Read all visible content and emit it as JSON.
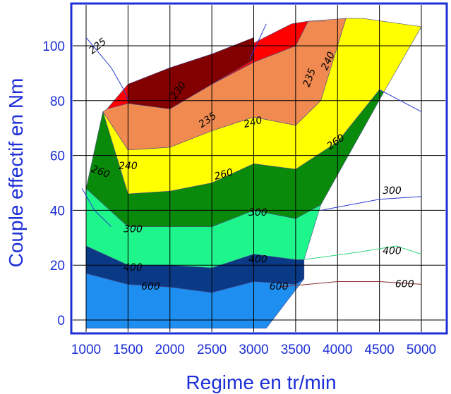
{
  "chart_data": {
    "type": "area",
    "title": "",
    "xlabel": "Regime en tr/min",
    "ylabel": "Couple effectif en Nm",
    "xlim": [
      900,
      5150
    ],
    "ylim": [
      -4,
      112
    ],
    "x_ticks": [
      1000,
      1500,
      2000,
      2500,
      3000,
      3500,
      4000,
      4500,
      5000
    ],
    "y_ticks": [
      0,
      20,
      40,
      60,
      80,
      100
    ],
    "grid": true,
    "colors": {
      "axis": "#1c2fd6",
      "grid": "#000000",
      "frame": "#1c2fd6"
    },
    "envelope": [
      [
        1000,
        -3
      ],
      [
        1030,
        60
      ],
      [
        1200,
        76
      ],
      [
        1500,
        86
      ],
      [
        3500,
        109
      ],
      [
        4300,
        110
      ],
      [
        5000,
        107
      ],
      [
        3500,
        20
      ],
      [
        3150,
        -3
      ]
    ],
    "bands": [
      {
        "name": "600",
        "color": "#1e8ef0",
        "upper": [
          [
            1000,
            17
          ],
          [
            1500,
            13
          ],
          [
            2000,
            12
          ],
          [
            2500,
            10
          ],
          [
            3000,
            14
          ],
          [
            3500,
            13
          ],
          [
            3600,
            15
          ]
        ],
        "lower": [
          [
            1000,
            -3
          ],
          [
            3150,
            -3
          ]
        ]
      },
      {
        "name": "400",
        "color": "#0a3a86",
        "upper": [
          [
            1000,
            27
          ],
          [
            1500,
            20
          ],
          [
            2000,
            20
          ],
          [
            2500,
            19
          ],
          [
            3000,
            24
          ],
          [
            3500,
            22
          ],
          [
            3600,
            22
          ]
        ],
        "lower": [
          [
            1000,
            17
          ],
          [
            1500,
            13
          ],
          [
            2000,
            12
          ],
          [
            2500,
            10
          ],
          [
            3000,
            14
          ],
          [
            3500,
            13
          ],
          [
            3600,
            15
          ]
        ]
      },
      {
        "name": "300",
        "color": "#1ef58a",
        "upper": [
          [
            1000,
            48
          ],
          [
            1500,
            34
          ],
          [
            2000,
            34
          ],
          [
            2500,
            34
          ],
          [
            3000,
            40
          ],
          [
            3500,
            37
          ],
          [
            3800,
            42
          ]
        ],
        "lower": [
          [
            1000,
            27
          ],
          [
            1500,
            20
          ],
          [
            2000,
            20
          ],
          [
            2500,
            19
          ],
          [
            3000,
            24
          ],
          [
            3500,
            22
          ],
          [
            3600,
            22
          ]
        ]
      },
      {
        "name": "260",
        "color": "#0a8a0a",
        "upper": [
          [
            1200,
            76
          ],
          [
            1500,
            46
          ],
          [
            2000,
            47
          ],
          [
            2500,
            50
          ],
          [
            3000,
            57
          ],
          [
            3500,
            55
          ],
          [
            4000,
            65
          ],
          [
            4500,
            84
          ],
          [
            4550,
            83
          ]
        ],
        "lower": [
          [
            1000,
            48
          ],
          [
            1500,
            34
          ],
          [
            2000,
            34
          ],
          [
            2500,
            34
          ],
          [
            3000,
            40
          ],
          [
            3500,
            37
          ],
          [
            3800,
            42
          ]
        ]
      },
      {
        "name": "240",
        "color": "#ffff00",
        "upper": [
          [
            1200,
            76
          ],
          [
            1500,
            62
          ],
          [
            2000,
            63
          ],
          [
            2500,
            69
          ],
          [
            3000,
            74
          ],
          [
            3500,
            71
          ],
          [
            3800,
            80
          ],
          [
            4100,
            110
          ],
          [
            4300,
            110
          ],
          [
            5000,
            107
          ]
        ],
        "lower": [
          [
            1200,
            76
          ],
          [
            1500,
            46
          ],
          [
            2000,
            47
          ],
          [
            2500,
            50
          ],
          [
            3000,
            57
          ],
          [
            3500,
            55
          ],
          [
            4000,
            65
          ],
          [
            4500,
            84
          ],
          [
            4550,
            83
          ]
        ]
      },
      {
        "name": "235",
        "color": "#f08a50",
        "upper": [
          [
            1250,
            77
          ],
          [
            1500,
            79
          ],
          [
            2000,
            77
          ],
          [
            2500,
            86
          ],
          [
            3000,
            94
          ],
          [
            3500,
            100
          ],
          [
            3650,
            109
          ],
          [
            4100,
            110
          ]
        ],
        "lower": [
          [
            1200,
            76
          ],
          [
            1500,
            62
          ],
          [
            2000,
            63
          ],
          [
            2500,
            69
          ],
          [
            3000,
            74
          ],
          [
            3500,
            71
          ],
          [
            3800,
            80
          ],
          [
            4100,
            110
          ]
        ]
      },
      {
        "name": "230",
        "color": "#ff0000",
        "upper": [
          [
            1500,
            86
          ],
          [
            2000,
            92
          ],
          [
            2500,
            97
          ],
          [
            3000,
            101
          ],
          [
            3450,
            108
          ],
          [
            3650,
            109
          ],
          [
            3850,
            109
          ]
        ],
        "lower": [
          [
            1250,
            77
          ],
          [
            1500,
            79
          ],
          [
            2000,
            77
          ],
          [
            2500,
            86
          ],
          [
            3000,
            94
          ],
          [
            3500,
            100
          ],
          [
            3650,
            109
          ],
          [
            3850,
            109
          ]
        ]
      },
      {
        "name": "225",
        "color": "#820000",
        "upper": [
          [
            1500,
            86
          ],
          [
            2000,
            92
          ],
          [
            2500,
            97
          ],
          [
            3000,
            103
          ]
        ],
        "lower": [
          [
            1500,
            79
          ],
          [
            2000,
            77
          ],
          [
            2500,
            86
          ],
          [
            3000,
            95
          ]
        ]
      }
    ],
    "extension_lines": [
      {
        "color": "#2a3acf",
        "points": [
          [
            1000,
            103
          ],
          [
            1300,
            92
          ],
          [
            1450,
            84
          ],
          [
            1500,
            80
          ]
        ]
      },
      {
        "color": "#2a3acf",
        "points": [
          [
            4500,
            84
          ],
          [
            5000,
            76
          ]
        ]
      },
      {
        "color": "#2a3acf",
        "points": [
          [
            950,
            48
          ],
          [
            1100,
            40
          ],
          [
            1300,
            34
          ]
        ]
      },
      {
        "color": "#2a3acf",
        "points": [
          [
            3800,
            40
          ],
          [
            4500,
            44
          ],
          [
            5000,
            45
          ]
        ]
      },
      {
        "color": "#2fd87a",
        "points": [
          [
            3600,
            22
          ],
          [
            4300,
            25
          ],
          [
            4700,
            27
          ],
          [
            5000,
            24
          ]
        ]
      },
      {
        "color": "#8a2a2a",
        "points": [
          [
            3300,
            12
          ],
          [
            4000,
            14
          ],
          [
            4500,
            14
          ],
          [
            5000,
            13
          ]
        ]
      },
      {
        "color": "#2a3acf",
        "points": [
          [
            2950,
            95
          ],
          [
            3150,
            108
          ]
        ]
      }
    ],
    "contour_labels": [
      {
        "text": "225",
        "x": 1160,
        "y": 99,
        "angle": -38
      },
      {
        "text": "230",
        "x": 2130,
        "y": 83,
        "angle": -55
      },
      {
        "text": "235",
        "x": 2470,
        "y": 72,
        "angle": -35
      },
      {
        "text": "235",
        "x": 3700,
        "y": 88,
        "angle": -70
      },
      {
        "text": "240",
        "x": 3920,
        "y": 94,
        "angle": -65
      },
      {
        "text": "240",
        "x": 3000,
        "y": 71,
        "angle": -15
      },
      {
        "text": "240",
        "x": 1500,
        "y": 55,
        "angle": 0
      },
      {
        "text": "260",
        "x": 1160,
        "y": 53,
        "angle": 20
      },
      {
        "text": "260",
        "x": 2650,
        "y": 52,
        "angle": -15
      },
      {
        "text": "260",
        "x": 4000,
        "y": 64,
        "angle": -35
      },
      {
        "text": "300",
        "x": 1560,
        "y": 32,
        "angle": 0
      },
      {
        "text": "300",
        "x": 3050,
        "y": 38,
        "angle": 0
      },
      {
        "text": "300",
        "x": 4650,
        "y": 46,
        "angle": 0
      },
      {
        "text": "400",
        "x": 1560,
        "y": 18,
        "angle": 0
      },
      {
        "text": "400",
        "x": 3050,
        "y": 21,
        "angle": 0
      },
      {
        "text": "400",
        "x": 4650,
        "y": 24,
        "angle": 0
      },
      {
        "text": "600",
        "x": 1770,
        "y": 11,
        "angle": 0
      },
      {
        "text": "600",
        "x": 3300,
        "y": 11,
        "angle": 0
      },
      {
        "text": "600",
        "x": 4800,
        "y": 12,
        "angle": 0
      }
    ]
  }
}
